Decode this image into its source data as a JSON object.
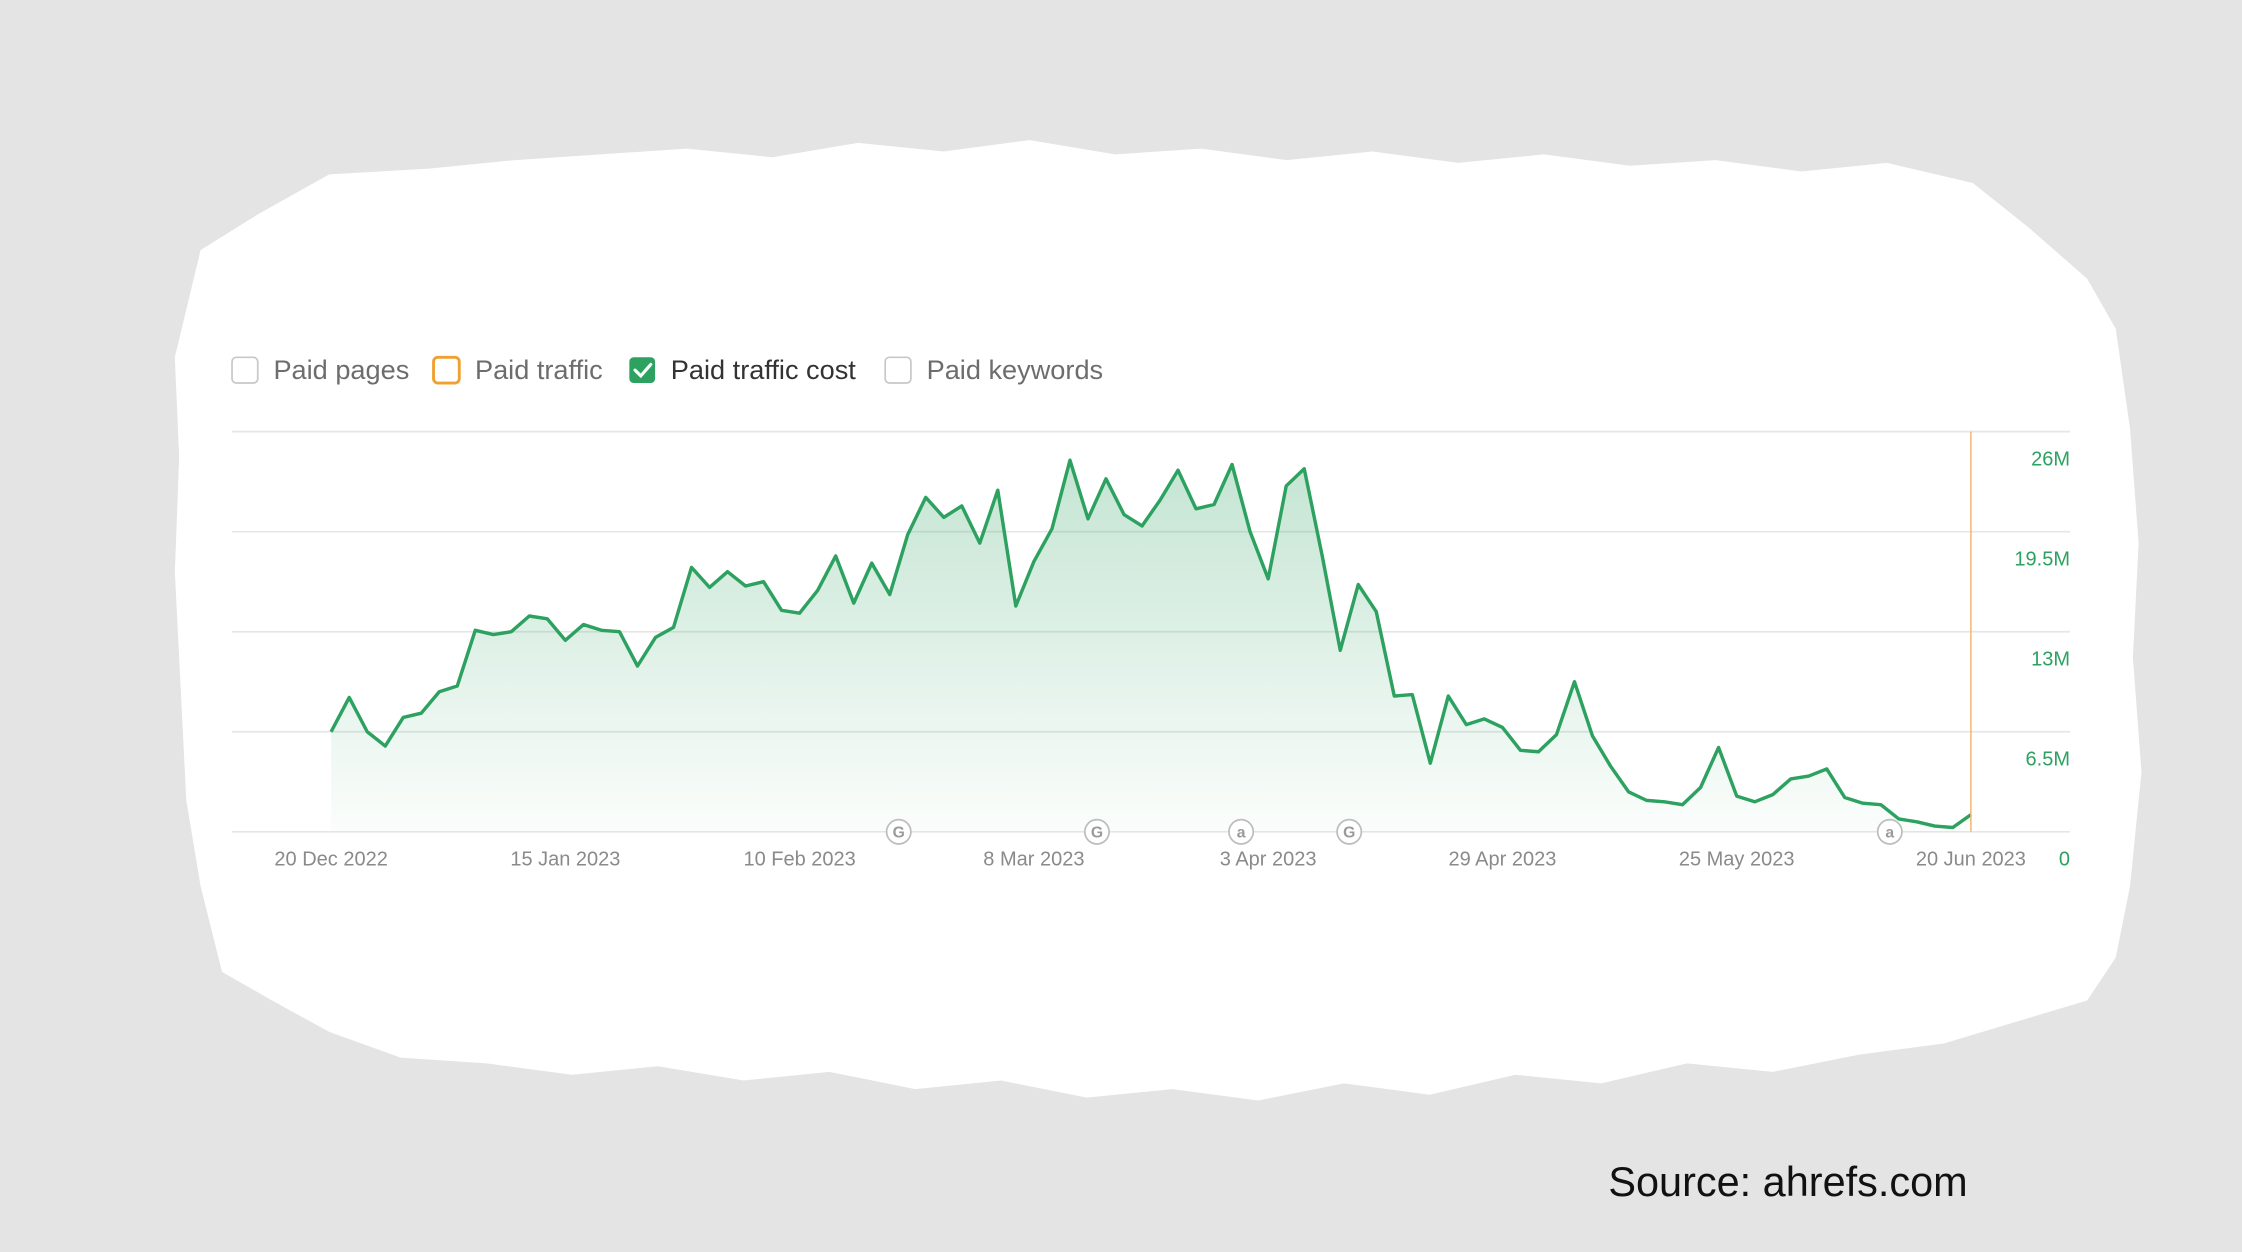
{
  "controls": [
    {
      "label": "Paid pages",
      "checked": false,
      "color": "#c8c8c8"
    },
    {
      "label": "Paid traffic",
      "checked": false,
      "color": "#f0a030"
    },
    {
      "label": "Paid traffic cost",
      "checked": true,
      "color": "#2da160"
    },
    {
      "label": "Paid keywords",
      "checked": false,
      "color": "#c8c8c8"
    }
  ],
  "chart_data": {
    "type": "line",
    "color": "#2da160",
    "grid": true,
    "x": [
      "2022-12-20",
      "2022-12-22",
      "2022-12-24",
      "2022-12-26",
      "2022-12-28",
      "2022-12-30",
      "2023-01-01",
      "2023-01-03",
      "2023-01-05",
      "2023-01-07",
      "2023-01-09",
      "2023-01-11",
      "2023-01-13",
      "2023-01-15",
      "2023-01-17",
      "2023-01-19",
      "2023-01-21",
      "2023-01-23",
      "2023-01-25",
      "2023-01-27",
      "2023-01-29",
      "2023-01-31",
      "2023-02-02",
      "2023-02-04",
      "2023-02-06",
      "2023-02-08",
      "2023-02-10",
      "2023-02-12",
      "2023-02-14",
      "2023-02-16",
      "2023-02-18",
      "2023-02-20",
      "2023-02-22",
      "2023-02-24",
      "2023-02-26",
      "2023-02-28",
      "2023-03-02",
      "2023-03-04",
      "2023-03-06",
      "2023-03-08",
      "2023-03-10",
      "2023-03-12",
      "2023-03-14",
      "2023-03-16",
      "2023-03-18",
      "2023-03-20",
      "2023-03-22",
      "2023-03-24",
      "2023-03-26",
      "2023-03-28",
      "2023-03-30",
      "2023-04-01",
      "2023-04-03",
      "2023-04-05",
      "2023-04-07",
      "2023-04-09",
      "2023-04-11",
      "2023-04-13",
      "2023-04-15",
      "2023-04-17",
      "2023-04-19",
      "2023-04-21",
      "2023-04-23",
      "2023-04-25",
      "2023-04-27",
      "2023-04-29",
      "2023-05-01",
      "2023-05-03",
      "2023-05-05",
      "2023-05-07",
      "2023-05-09",
      "2023-05-11",
      "2023-05-13",
      "2023-05-15",
      "2023-05-17",
      "2023-05-19",
      "2023-05-21",
      "2023-05-23",
      "2023-05-25",
      "2023-05-27",
      "2023-05-29",
      "2023-05-31",
      "2023-06-02",
      "2023-06-04",
      "2023-06-06",
      "2023-06-08",
      "2023-06-10",
      "2023-06-12",
      "2023-06-14",
      "2023-06-16",
      "2023-06-18",
      "2023-06-20"
    ],
    "values": [
      6500000,
      8730000,
      6500000,
      5570000,
      7430000,
      7710000,
      9100000,
      9470000,
      13090000,
      12810000,
      13000000,
      14020000,
      13840000,
      12440000,
      13460000,
      13090000,
      13000000,
      10770000,
      12630000,
      13280000,
      17180000,
      15880000,
      16900000,
      15970000,
      16250000,
      14390000,
      14210000,
      15690000,
      17920000,
      14860000,
      17460000,
      15410000,
      19310000,
      21730000,
      20430000,
      21170000,
      18760000,
      22190000,
      14670000,
      17550000,
      19690000,
      24140000,
      20340000,
      22940000,
      20610000,
      19870000,
      21540000,
      23490000,
      20990000,
      21260000,
      23860000,
      19500000,
      16440000,
      22470000,
      23590000,
      17920000,
      11790000,
      16060000,
      14300000,
      8820000,
      8910000,
      4460000,
      8820000,
      6960000,
      7340000,
      6780000,
      5290000,
      5200000,
      6310000,
      9750000,
      6220000,
      4270000,
      2600000,
      2040000,
      1950000,
      1760000,
      2880000,
      5480000,
      2320000,
      1950000,
      2410000,
      3440000,
      3620000,
      4090000,
      2230000,
      1860000,
      1760000,
      840000,
      650000,
      370000,
      280000,
      1110000
    ],
    "xlim": [
      "2022-12-09",
      "2023-07-01"
    ],
    "xticks": [
      {
        "value": "2022-12-20",
        "label": "20 Dec 2022"
      },
      {
        "value": "2023-01-15",
        "label": "15 Jan 2023"
      },
      {
        "value": "2023-02-10",
        "label": "10 Feb 2023"
      },
      {
        "value": "2023-03-08",
        "label": "8 Mar 2023"
      },
      {
        "value": "2023-04-03",
        "label": "3 Apr 2023"
      },
      {
        "value": "2023-04-29",
        "label": "29 Apr 2023"
      },
      {
        "value": "2023-05-25",
        "label": "25 May 2023"
      },
      {
        "value": "2023-06-20",
        "label": "20 Jun 2023"
      }
    ],
    "ylim": [
      0,
      26000000
    ],
    "yticks": [
      0,
      {
        "value": 6500000,
        "label": "6.5M"
      },
      {
        "value": 13000000,
        "label": "13M"
      },
      {
        "value": 19500000,
        "label": "19.5M"
      },
      {
        "value": 26000000,
        "label": "26M"
      }
    ],
    "annotations": [
      {
        "label": "G",
        "x": "2023-02-21"
      },
      {
        "label": "G",
        "x": "2023-03-15"
      },
      {
        "label": "a",
        "x": "2023-03-31"
      },
      {
        "label": "G",
        "x": "2023-04-12"
      },
      {
        "label": "a",
        "x": "2023-06-11"
      }
    ]
  },
  "source": "Source: ahrefs.com"
}
